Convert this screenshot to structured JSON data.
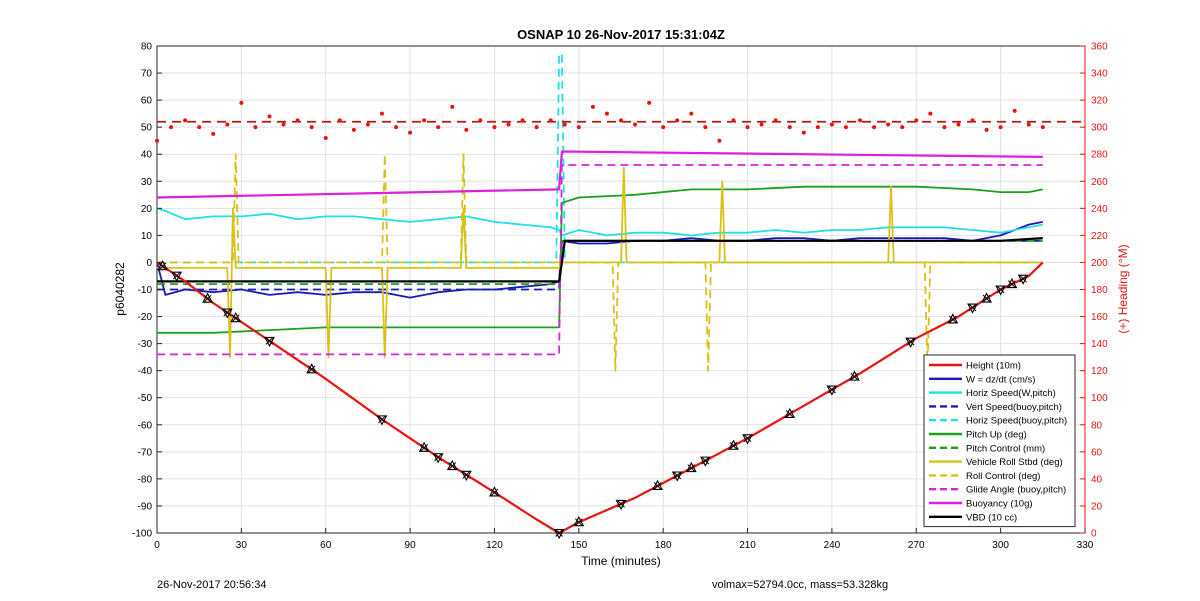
{
  "footer": {
    "left": "26-Nov-2017 20:56:34",
    "right": "volmax=52794.0cc, mass=53.328kg"
  },
  "chart_data": {
    "type": "line",
    "title": "OSNAP 10 26-Nov-2017 15:31:04Z",
    "xlabel": "Time (minutes)",
    "ylabel": "p6040282",
    "y2label": "(+) Heading (°M)",
    "xlim": [
      0,
      330
    ],
    "ylim": [
      -100,
      80
    ],
    "y2lim": [
      0,
      360
    ],
    "xticks": [
      0,
      30,
      60,
      90,
      120,
      150,
      180,
      210,
      240,
      270,
      300,
      330
    ],
    "yticks": [
      -100,
      -90,
      -80,
      -70,
      -60,
      -50,
      -40,
      -30,
      -20,
      -10,
      0,
      10,
      20,
      30,
      40,
      50,
      60,
      70,
      80
    ],
    "y2ticks": [
      0,
      20,
      40,
      60,
      80,
      100,
      120,
      140,
      160,
      180,
      200,
      220,
      240,
      260,
      280,
      300,
      320,
      340,
      360
    ],
    "grid": true,
    "legend_position": "bottom-right",
    "series": [
      {
        "name": "Height (10m)",
        "color": "#e8140e",
        "style": "solid",
        "width": 2.2,
        "x": [
          0,
          10,
          20,
          30,
          40,
          60,
          80,
          100,
          120,
          135,
          143,
          150,
          170,
          190,
          210,
          230,
          250,
          270,
          285,
          300,
          310,
          315
        ],
        "y": [
          0,
          -7,
          -15,
          -22,
          -29,
          -43,
          -58,
          -72,
          -85,
          -95,
          -100,
          -96,
          -87,
          -76,
          -65,
          -53,
          -41,
          -28,
          -20,
          -10,
          -5,
          0
        ]
      },
      {
        "name": "W = dz/dt (cm/s)",
        "color": "#1a1ab8",
        "style": "solid",
        "width": 1.8,
        "x": [
          0,
          3,
          10,
          20,
          30,
          40,
          50,
          60,
          70,
          80,
          90,
          100,
          110,
          120,
          130,
          140,
          143,
          144,
          150,
          160,
          170,
          180,
          190,
          200,
          210,
          220,
          230,
          240,
          250,
          260,
          270,
          280,
          290,
          300,
          305,
          310,
          315
        ],
        "y": [
          0,
          -12,
          -10,
          -11,
          -10,
          -12,
          -11,
          -12,
          -11,
          -11,
          -13,
          -11,
          -10,
          -10,
          -9,
          -8,
          -7,
          8,
          7,
          7,
          8,
          8,
          9,
          8,
          8,
          9,
          9,
          8,
          9,
          9,
          9,
          9,
          8,
          10,
          12,
          14,
          15
        ]
      },
      {
        "name": "Horiz Speed(W,pitch)",
        "color": "#21e0e6",
        "style": "solid",
        "width": 1.8,
        "x": [
          0,
          3,
          10,
          20,
          30,
          40,
          50,
          60,
          70,
          80,
          90,
          100,
          110,
          120,
          130,
          140,
          143,
          144,
          150,
          160,
          170,
          180,
          190,
          200,
          210,
          220,
          230,
          240,
          250,
          260,
          270,
          280,
          290,
          300,
          305,
          310,
          315
        ],
        "y": [
          20,
          19,
          16,
          17,
          17,
          18,
          16,
          17,
          17,
          16,
          15,
          16,
          17,
          15,
          14,
          13,
          12,
          10,
          12,
          10,
          11,
          11,
          10,
          11,
          11,
          12,
          11,
          12,
          12,
          13,
          13,
          13,
          12,
          11,
          12,
          13,
          14
        ]
      },
      {
        "name": "Vert Speed(buoy,pitch)",
        "color": "#1a1ab8",
        "style": "dashed",
        "width": 1.8,
        "x": [
          0,
          143,
          144,
          315
        ],
        "y": [
          -10,
          -10,
          8,
          8
        ]
      },
      {
        "name": "Horiz Speed(buoy,pitch)",
        "color": "#21e0e6",
        "style": "dashed",
        "width": 1.8,
        "x": [
          0,
          142,
          143,
          144,
          145,
          315
        ],
        "y": [
          0,
          0,
          77,
          77,
          0,
          0
        ]
      },
      {
        "name": "Pitch Up (deg)",
        "color": "#1ca11c",
        "style": "solid",
        "width": 1.8,
        "x": [
          0,
          20,
          40,
          60,
          80,
          100,
          120,
          140,
          143,
          144,
          150,
          170,
          190,
          210,
          230,
          250,
          270,
          290,
          300,
          310,
          315
        ],
        "y": [
          -26,
          -26,
          -25,
          -24,
          -24,
          -24,
          -24,
          -24,
          -24,
          22,
          24,
          25,
          27,
          27,
          28,
          28,
          28,
          27,
          26,
          26,
          27
        ]
      },
      {
        "name": "Pitch Control (mm)",
        "color": "#1ca11c",
        "style": "dashed",
        "width": 1.8,
        "x": [
          0,
          143,
          144,
          315
        ],
        "y": [
          -8,
          -8,
          8,
          8
        ]
      },
      {
        "name": "Vehicle Roll Stbd (deg)",
        "color": "#d8c21a",
        "style": "solid",
        "width": 1.8,
        "x": [
          0,
          25,
          26,
          27,
          28,
          60,
          61,
          62,
          80,
          81,
          82,
          108,
          109,
          110,
          143,
          144,
          165,
          166,
          167,
          200,
          201,
          202,
          260,
          261,
          262,
          315
        ],
        "y": [
          -2,
          -2,
          -35,
          20,
          -2,
          -2,
          -35,
          -2,
          -2,
          -35,
          -2,
          -2,
          20,
          -2,
          -2,
          0,
          0,
          35,
          0,
          0,
          30,
          0,
          0,
          28,
          0,
          0
        ]
      },
      {
        "name": "Roll Control (deg)",
        "color": "#d8c21a",
        "style": "dashed",
        "width": 1.8,
        "x": [
          0,
          27,
          28,
          29,
          80,
          81,
          82,
          108,
          109,
          110,
          143,
          144,
          162,
          163,
          164,
          195,
          196,
          197,
          273,
          274,
          275,
          315
        ],
        "y": [
          0,
          0,
          40,
          0,
          0,
          40,
          0,
          0,
          40,
          0,
          0,
          0,
          0,
          -40,
          0,
          0,
          -40,
          0,
          0,
          -40,
          0,
          0
        ]
      },
      {
        "name": "Glide Angle (buoy,pitch)",
        "color": "#dc21dc",
        "style": "dashed",
        "width": 1.8,
        "x": [
          0,
          143,
          144,
          315
        ],
        "y": [
          -34,
          -34,
          36,
          36
        ]
      },
      {
        "name": "Buoyancy (10g)",
        "color": "#dc21dc",
        "style": "solid",
        "width": 2.2,
        "x": [
          0,
          143,
          144,
          315
        ],
        "y": [
          24,
          27,
          41,
          39
        ]
      },
      {
        "name": "VBD (10 cc)",
        "color": "#000000",
        "style": "solid",
        "width": 2.2,
        "x": [
          0,
          143,
          144,
          145,
          300,
          315
        ],
        "y": [
          -7,
          -7,
          0,
          8,
          8,
          9
        ]
      }
    ],
    "heading_series": {
      "name": "Heading",
      "axis": "right",
      "color": "#e8140e",
      "style": "dots",
      "x": [
        0,
        5,
        10,
        15,
        20,
        25,
        30,
        35,
        40,
        45,
        50,
        55,
        60,
        65,
        70,
        75,
        80,
        85,
        90,
        95,
        100,
        105,
        110,
        115,
        120,
        125,
        130,
        135,
        140,
        145,
        150,
        155,
        160,
        165,
        170,
        175,
        180,
        185,
        190,
        195,
        200,
        205,
        210,
        215,
        220,
        225,
        230,
        235,
        240,
        245,
        250,
        255,
        260,
        265,
        270,
        275,
        280,
        285,
        290,
        295,
        300,
        305,
        310,
        315
      ],
      "y": [
        290,
        300,
        305,
        300,
        295,
        302,
        318,
        300,
        308,
        302,
        305,
        300,
        292,
        305,
        298,
        302,
        310,
        300,
        296,
        305,
        300,
        315,
        298,
        305,
        300,
        302,
        305,
        300,
        305,
        302,
        300,
        315,
        310,
        305,
        302,
        318,
        300,
        305,
        310,
        300,
        290,
        305,
        300,
        302,
        305,
        300,
        296,
        300,
        302,
        300,
        305,
        300,
        302,
        300,
        305,
        310,
        300,
        302,
        305,
        298,
        300,
        312,
        302,
        300
      ]
    },
    "heading_mean": {
      "axis": "right",
      "color": "#c0140e",
      "style": "dashed",
      "value": 304
    },
    "markers": {
      "on_series": "Height (10m)",
      "symbol": "triangle-up, triangle-down, x",
      "x": [
        2,
        7,
        18,
        25,
        28,
        40,
        55,
        80,
        95,
        100,
        105,
        110,
        120,
        143,
        150,
        165,
        178,
        185,
        190,
        195,
        205,
        210,
        225,
        240,
        248,
        268,
        283,
        290,
        295,
        300,
        304,
        308
      ]
    }
  }
}
